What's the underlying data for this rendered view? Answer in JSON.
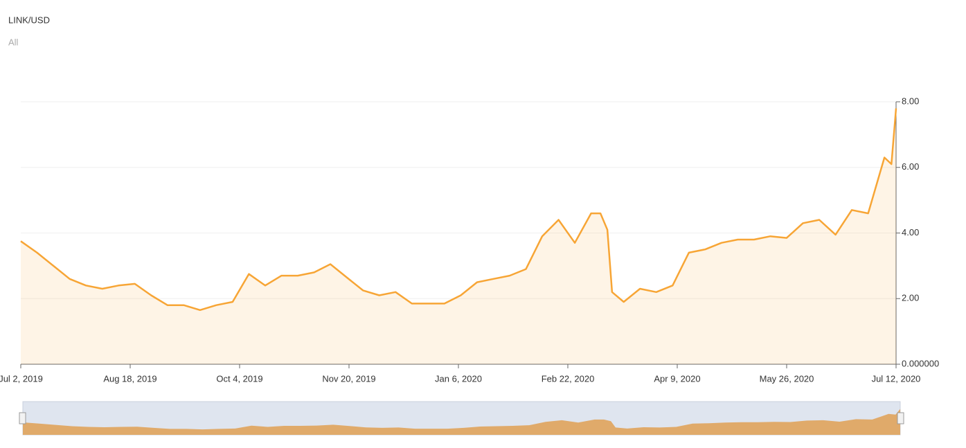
{
  "chart_data": {
    "type": "area",
    "title": "LINK/USD",
    "subtitle": "All",
    "x": [
      "2019-07-02",
      "2019-07-09",
      "2019-07-16",
      "2019-07-23",
      "2019-07-30",
      "2019-08-06",
      "2019-08-13",
      "2019-08-20",
      "2019-08-27",
      "2019-09-03",
      "2019-09-10",
      "2019-09-17",
      "2019-09-24",
      "2019-10-01",
      "2019-10-08",
      "2019-10-15",
      "2019-10-22",
      "2019-10-29",
      "2019-11-05",
      "2019-11-12",
      "2019-11-19",
      "2019-11-26",
      "2019-12-03",
      "2019-12-10",
      "2019-12-17",
      "2019-12-24",
      "2019-12-31",
      "2020-01-07",
      "2020-01-14",
      "2020-01-21",
      "2020-01-28",
      "2020-02-04",
      "2020-02-11",
      "2020-02-18",
      "2020-02-25",
      "2020-03-03",
      "2020-03-07",
      "2020-03-10",
      "2020-03-12",
      "2020-03-17",
      "2020-03-24",
      "2020-03-31",
      "2020-04-07",
      "2020-04-14",
      "2020-04-21",
      "2020-04-28",
      "2020-05-05",
      "2020-05-12",
      "2020-05-19",
      "2020-05-26",
      "2020-06-02",
      "2020-06-09",
      "2020-06-16",
      "2020-06-23",
      "2020-06-30",
      "2020-07-07",
      "2020-07-10",
      "2020-07-12"
    ],
    "series": [
      {
        "name": "LINK/USD",
        "color": "#f7a535",
        "values": [
          3.75,
          3.4,
          3.0,
          2.6,
          2.4,
          2.3,
          2.4,
          2.45,
          2.1,
          1.8,
          1.8,
          1.65,
          1.8,
          1.9,
          2.75,
          2.4,
          2.7,
          2.7,
          2.8,
          3.05,
          2.65,
          2.25,
          2.1,
          2.2,
          1.85,
          1.85,
          1.85,
          2.1,
          2.5,
          2.6,
          2.7,
          2.9,
          3.9,
          4.4,
          3.7,
          4.6,
          4.6,
          4.1,
          2.2,
          1.9,
          2.3,
          2.2,
          2.4,
          3.4,
          3.5,
          3.7,
          3.8,
          3.8,
          3.9,
          3.85,
          4.3,
          4.4,
          3.95,
          4.7,
          4.6,
          6.3,
          6.1,
          7.8
        ]
      }
    ],
    "xlim": [
      "2019-07-02",
      "2020-07-12"
    ],
    "xticks": [
      {
        "value": "2019-07-02",
        "label": "Jul 2, 2019"
      },
      {
        "value": "2019-08-18",
        "label": "Aug 18, 2019"
      },
      {
        "value": "2019-10-04",
        "label": "Oct 4, 2019"
      },
      {
        "value": "2019-11-20",
        "label": "Nov 20, 2019"
      },
      {
        "value": "2020-01-06",
        "label": "Jan 6, 2020"
      },
      {
        "value": "2020-02-22",
        "label": "Feb 22, 2020"
      },
      {
        "value": "2020-04-09",
        "label": "Apr 9, 2020"
      },
      {
        "value": "2020-05-26",
        "label": "May 26, 2020"
      },
      {
        "value": "2020-07-12",
        "label": "Jul 12, 2020"
      }
    ],
    "ylim": [
      0,
      8
    ],
    "yticks": [
      {
        "value": 0,
        "label": "0.000000"
      },
      {
        "value": 2,
        "label": "2.00"
      },
      {
        "value": 4,
        "label": "4.00"
      },
      {
        "value": 6,
        "label": "6.00"
      },
      {
        "value": 8,
        "label": "8.00"
      }
    ],
    "grid": true
  }
}
